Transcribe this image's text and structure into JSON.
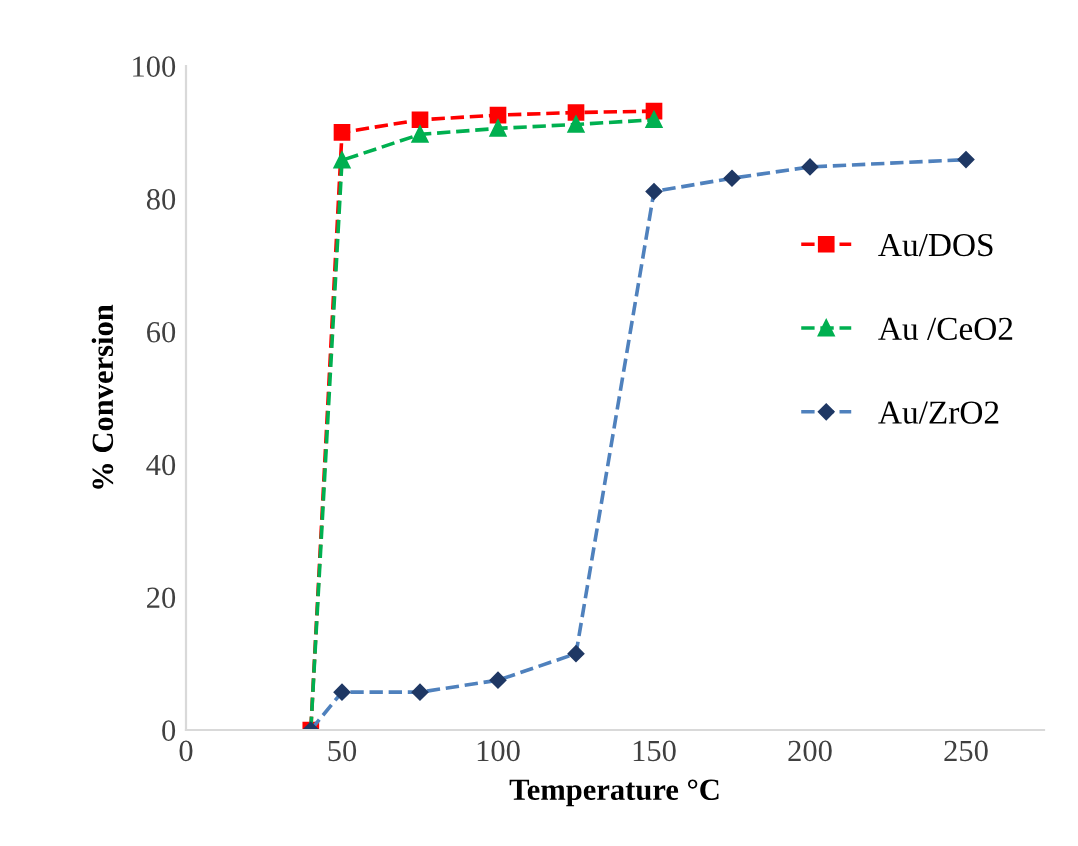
{
  "chart_data": {
    "type": "line",
    "xlabel": "Temperature °C",
    "ylabel": "% Conversion",
    "xlim": [
      0,
      275
    ],
    "xticks": [
      0,
      50,
      100,
      150,
      200,
      250
    ],
    "ylim": [
      0,
      100
    ],
    "yticks": [
      0,
      20,
      40,
      60,
      80,
      100
    ],
    "grid": false,
    "legend": "right",
    "line_style": "dashed",
    "series": [
      {
        "name": "Au/DOS",
        "color": "#ff0000",
        "marker": "square",
        "x": [
          40,
          50,
          75,
          100,
          125,
          150
        ],
        "values": [
          0,
          90,
          91.9,
          92.6,
          93,
          93.2
        ]
      },
      {
        "name": "Au /CeO2",
        "color": "#00b050",
        "marker": "triangle",
        "x": [
          40,
          50,
          75,
          100,
          125,
          150
        ],
        "values": [
          0,
          85.8,
          89.7,
          90.6,
          91.2,
          91.9
        ]
      },
      {
        "name": "Au/ZrO2",
        "color": "#4f81bd",
        "marker": "diamond",
        "x": [
          40,
          50,
          75,
          100,
          125,
          150,
          175,
          200,
          250
        ],
        "values": [
          0,
          5.7,
          5.7,
          7.5,
          11.5,
          81.1,
          83.1,
          84.8,
          85.9
        ]
      }
    ]
  }
}
